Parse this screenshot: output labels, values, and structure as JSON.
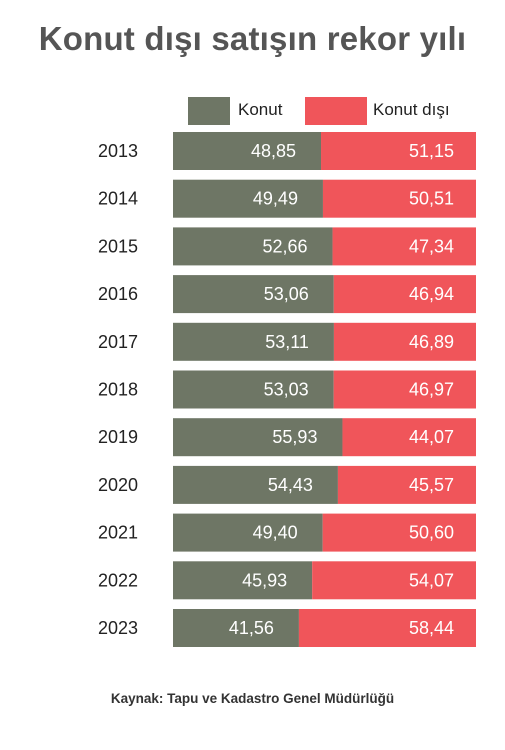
{
  "title": "Konut dışı satışın rekor yılı",
  "source": "Kaynak: Tapu ve Kadastro Genel Müdürlüğü",
  "colors": {
    "konut": "#6e7665",
    "konut_disi": "#f0555a"
  },
  "chart_data": {
    "type": "bar",
    "orientation": "horizontal",
    "stacked": true,
    "categories": [
      "2013",
      "2014",
      "2015",
      "2016",
      "2017",
      "2018",
      "2019",
      "2020",
      "2021",
      "2022",
      "2023"
    ],
    "series": [
      {
        "name": "Konut",
        "values": [
          48.85,
          49.49,
          52.66,
          53.06,
          53.11,
          53.03,
          55.93,
          54.43,
          49.4,
          45.93,
          41.56
        ],
        "labels": [
          "48,85",
          "49,49",
          "52,66",
          "53,06",
          "53,11",
          "53,03",
          "55,93",
          "54,43",
          "49,40",
          "45,93",
          "41,56"
        ]
      },
      {
        "name": "Konut dışı",
        "values": [
          51.15,
          50.51,
          47.34,
          46.94,
          46.89,
          46.97,
          44.07,
          45.57,
          50.6,
          54.07,
          58.44
        ],
        "labels": [
          "51,15",
          "50,51",
          "47,34",
          "46,94",
          "46,89",
          "46,97",
          "44,07",
          "45,57",
          "50,60",
          "54,07",
          "58,44"
        ]
      }
    ],
    "xlim": [
      0,
      100
    ],
    "legend": "top",
    "grid": false
  }
}
